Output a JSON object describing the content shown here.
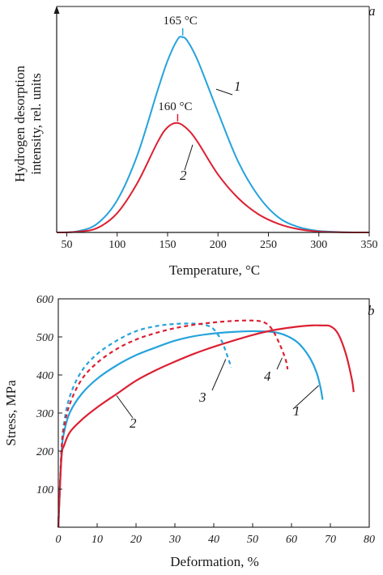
{
  "colors": {
    "blue": "#26a3dc",
    "red": "#dc2032",
    "axis": "#1a1a1a"
  },
  "chart_data": [
    {
      "panel": "a",
      "type": "line",
      "xlabel": "Temperature, °C",
      "ylabel_line1": "Hydrogen desorption",
      "ylabel_line2": "intensity, rel. units",
      "xlim": [
        40,
        350
      ],
      "ylim": [
        0,
        1.0
      ],
      "xticks": [
        50,
        100,
        150,
        200,
        250,
        300,
        350
      ],
      "y_tick_labels_shown": false,
      "series": [
        {
          "name": "1",
          "color": "#26a3dc",
          "x": [
            40,
            60,
            80,
            100,
            120,
            140,
            150,
            160,
            165,
            170,
            180,
            200,
            220,
            240,
            260,
            280,
            300,
            320,
            340,
            350
          ],
          "y": [
            0.0,
            0.005,
            0.04,
            0.15,
            0.36,
            0.66,
            0.8,
            0.9,
            0.91,
            0.89,
            0.8,
            0.56,
            0.33,
            0.17,
            0.07,
            0.025,
            0.007,
            0.002,
            0.0,
            0.0
          ]
        },
        {
          "name": "2",
          "color": "#dc2032",
          "x": [
            40,
            60,
            80,
            100,
            120,
            140,
            150,
            160,
            170,
            180,
            200,
            220,
            240,
            260,
            280,
            300,
            320,
            340,
            350
          ],
          "y": [
            0.0,
            0.003,
            0.02,
            0.09,
            0.23,
            0.42,
            0.49,
            0.51,
            0.48,
            0.42,
            0.27,
            0.16,
            0.085,
            0.04,
            0.015,
            0.004,
            0.001,
            0.0,
            0.0
          ]
        }
      ],
      "annotations": [
        {
          "text": "165 °C",
          "series": "1",
          "x": 165
        },
        {
          "text": "160 °C",
          "series": "2",
          "x": 160
        }
      ],
      "curve_labels": [
        {
          "text": "1",
          "series": "1"
        },
        {
          "text": "2",
          "series": "2"
        }
      ]
    },
    {
      "panel": "b",
      "type": "line",
      "xlabel": "Deformation, %",
      "ylabel": "Stress, MPa",
      "xlim": [
        0,
        80
      ],
      "ylim": [
        0,
        600
      ],
      "xticks": [
        0,
        10,
        20,
        30,
        40,
        50,
        60,
        70,
        80
      ],
      "yticks": [
        100,
        200,
        300,
        400,
        500,
        600
      ],
      "series": [
        {
          "name": "1",
          "color": "#26a3dc",
          "dashed": false,
          "x": [
            0,
            0.8,
            1.5,
            3,
            6,
            10,
            15,
            20,
            25,
            30,
            35,
            40,
            45,
            50,
            55,
            58,
            61,
            63,
            65,
            66.5,
            67.5,
            68
          ],
          "y": [
            0,
            190,
            250,
            302,
            350,
            390,
            425,
            452,
            472,
            490,
            502,
            509,
            513,
            515,
            513,
            506,
            490,
            470,
            440,
            405,
            365,
            335
          ]
        },
        {
          "name": "2",
          "color": "#dc2032",
          "dashed": false,
          "x": [
            0,
            0.8,
            1.5,
            3,
            6,
            10,
            15,
            20,
            25,
            30,
            35,
            40,
            45,
            50,
            55,
            60,
            65,
            68,
            70,
            72,
            74,
            75.5,
            76
          ],
          "y": [
            0,
            180,
            215,
            250,
            282,
            315,
            350,
            385,
            412,
            435,
            456,
            474,
            490,
            505,
            517,
            525,
            530,
            530,
            528,
            508,
            455,
            390,
            355
          ]
        },
        {
          "name": "3",
          "color": "#26a3dc",
          "dashed": true,
          "x": [
            0,
            0.8,
            1.5,
            3,
            6,
            10,
            15,
            20,
            25,
            30,
            35,
            38,
            40,
            42,
            43.5,
            44.5
          ],
          "y": [
            0,
            200,
            275,
            345,
            410,
            455,
            490,
            515,
            528,
            534,
            535,
            531,
            520,
            490,
            450,
            420
          ]
        },
        {
          "name": "4",
          "color": "#dc2032",
          "dashed": true,
          "x": [
            0,
            0.8,
            1.5,
            3,
            6,
            10,
            15,
            20,
            25,
            30,
            35,
            40,
            45,
            50,
            53,
            55,
            57,
            58.5,
            59
          ],
          "y": [
            0,
            195,
            262,
            325,
            388,
            432,
            468,
            493,
            510,
            523,
            532,
            538,
            542,
            543,
            538,
            520,
            480,
            440,
            415
          ]
        }
      ],
      "curve_labels": [
        {
          "text": "1",
          "series": "1"
        },
        {
          "text": "2",
          "series": "2"
        },
        {
          "text": "3",
          "series": "3"
        },
        {
          "text": "4",
          "series": "4"
        }
      ]
    }
  ]
}
